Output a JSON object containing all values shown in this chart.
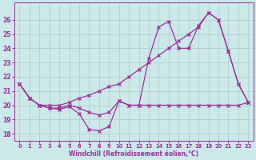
{
  "background_color": "#cce8e8",
  "grid_color": "#aacccc",
  "line_color": "#993399",
  "x_hours": [
    0,
    1,
    2,
    3,
    4,
    5,
    6,
    7,
    8,
    9,
    10,
    11,
    12,
    13,
    14,
    15,
    16,
    17,
    18,
    19,
    20,
    21,
    22,
    23
  ],
  "series_wavy": [
    21.5,
    20.5,
    20.0,
    19.8,
    19.7,
    19.9,
    19.4,
    18.3,
    18.2,
    18.5,
    20.3,
    20.0,
    20.0,
    23.3,
    25.5,
    25.9,
    24.0,
    24.0,
    25.6,
    26.5,
    26.0,
    23.8,
    21.5,
    20.2
  ],
  "series_flat": [
    21.5,
    20.5,
    20.0,
    19.8,
    19.8,
    20.0,
    19.8,
    19.5,
    19.3,
    19.5,
    20.3,
    20.0,
    20.0,
    20.0,
    20.0,
    20.0,
    20.0,
    20.0,
    20.0,
    20.0,
    20.0,
    20.0,
    20.0,
    20.2
  ],
  "series_diagonal": [
    21.5,
    20.5,
    20.0,
    20.0,
    20.0,
    20.2,
    20.5,
    20.7,
    21.0,
    21.3,
    21.5,
    22.0,
    22.5,
    23.0,
    23.5,
    24.0,
    24.5,
    25.0,
    25.5,
    26.5,
    26.0,
    23.8,
    21.5,
    20.2
  ],
  "ylim": [
    17.5,
    27.2
  ],
  "xlim": [
    -0.5,
    23.5
  ],
  "yticks": [
    18,
    19,
    20,
    21,
    22,
    23,
    24,
    25,
    26
  ],
  "xtick_labels": [
    "0",
    "1",
    "2",
    "3",
    "4",
    "5",
    "6",
    "7",
    "8",
    "9",
    "10",
    "11",
    "12",
    "13",
    "14",
    "15",
    "16",
    "17",
    "18",
    "19",
    "20",
    "21",
    "22",
    "23"
  ],
  "xlabel": "Windchill (Refroidissement éolien,°C)"
}
